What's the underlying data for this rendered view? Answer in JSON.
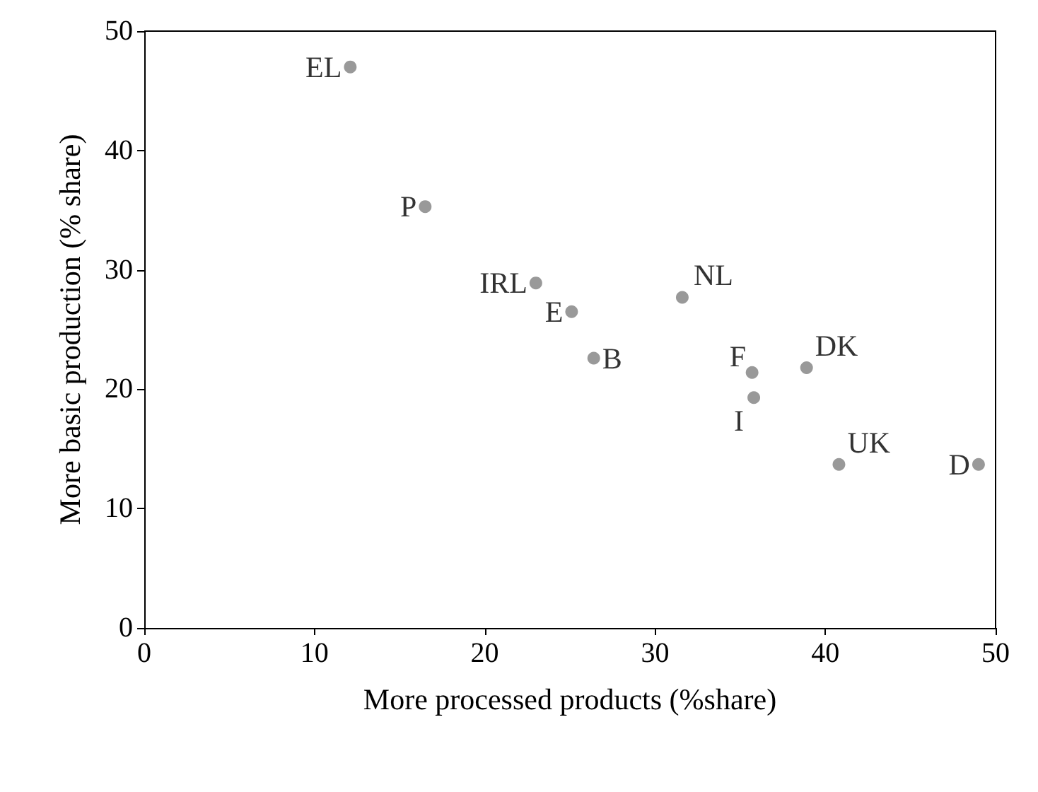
{
  "chart_data": {
    "type": "scatter",
    "xlabel": "More processed products (%share)",
    "ylabel": "More basic production (% share)",
    "x": [
      12.1,
      16.5,
      23.0,
      25.1,
      26.4,
      31.6,
      35.7,
      35.8,
      38.9,
      40.8,
      49.0
    ],
    "values": [
      47.0,
      35.3,
      28.9,
      26.5,
      22.6,
      27.7,
      21.4,
      19.3,
      21.8,
      13.7,
      13.7
    ],
    "color": "#7f7f7f",
    "marker": "circle",
    "grid": false,
    "xlim": [
      0,
      50
    ],
    "xticks": [
      0,
      10,
      20,
      30,
      40,
      50
    ],
    "ylim": [
      0,
      50
    ],
    "yticks": [
      0,
      10,
      20,
      30,
      40,
      50
    ],
    "annotations": [
      {
        "text": "EL",
        "x": 12.1,
        "y": 47.0
      },
      {
        "text": "P",
        "x": 16.5,
        "y": 35.3
      },
      {
        "text": "IRL",
        "x": 23.0,
        "y": 28.9
      },
      {
        "text": "E",
        "x": 25.1,
        "y": 26.5
      },
      {
        "text": "B",
        "x": 26.4,
        "y": 22.6
      },
      {
        "text": "NL",
        "x": 31.6,
        "y": 27.7
      },
      {
        "text": "F",
        "x": 35.7,
        "y": 21.4
      },
      {
        "text": "I",
        "x": 35.8,
        "y": 19.3
      },
      {
        "text": "DK",
        "x": 38.9,
        "y": 21.8
      },
      {
        "text": "UK",
        "x": 40.8,
        "y": 13.7
      },
      {
        "text": "D",
        "x": 49.0,
        "y": 13.7
      }
    ]
  }
}
